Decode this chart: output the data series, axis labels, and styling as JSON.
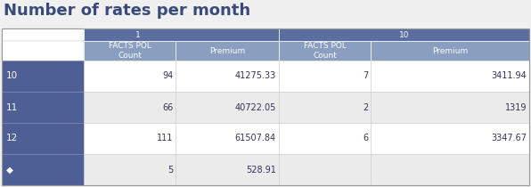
{
  "title": "Number of rates per month",
  "col_group_1": "1",
  "col_group_2": "10",
  "col_headers": [
    "FACTS POL\nCount",
    "Premium",
    "FACTS POL\nCount",
    "Premium"
  ],
  "row_labels": [
    "10",
    "11",
    "12",
    "◆"
  ],
  "table_data": [
    [
      "94",
      "41275.33",
      "7",
      "3411.94"
    ],
    [
      "66",
      "40722.05",
      "2",
      "1319"
    ],
    [
      "111",
      "61507.84",
      "6",
      "3347.67"
    ],
    [
      "5",
      "528.91",
      "",
      ""
    ]
  ],
  "title_color": "#3a4a7a",
  "header_bg_dark": "#5a6ea0",
  "header_bg_light": "#8a9ec0",
  "row_label_bg": "#4e5f96",
  "row_label_color": "#ffffff",
  "header_label_top_bg": "#ffffff",
  "cell_bg": "#ffffff",
  "header_text_color": "#ffffff",
  "data_text_color": "#333355",
  "title_fontsize": 13,
  "header_fontsize": 6.5,
  "data_fontsize": 7,
  "row_label_fontsize": 7.5,
  "fig_bg": "#f0f0f0"
}
